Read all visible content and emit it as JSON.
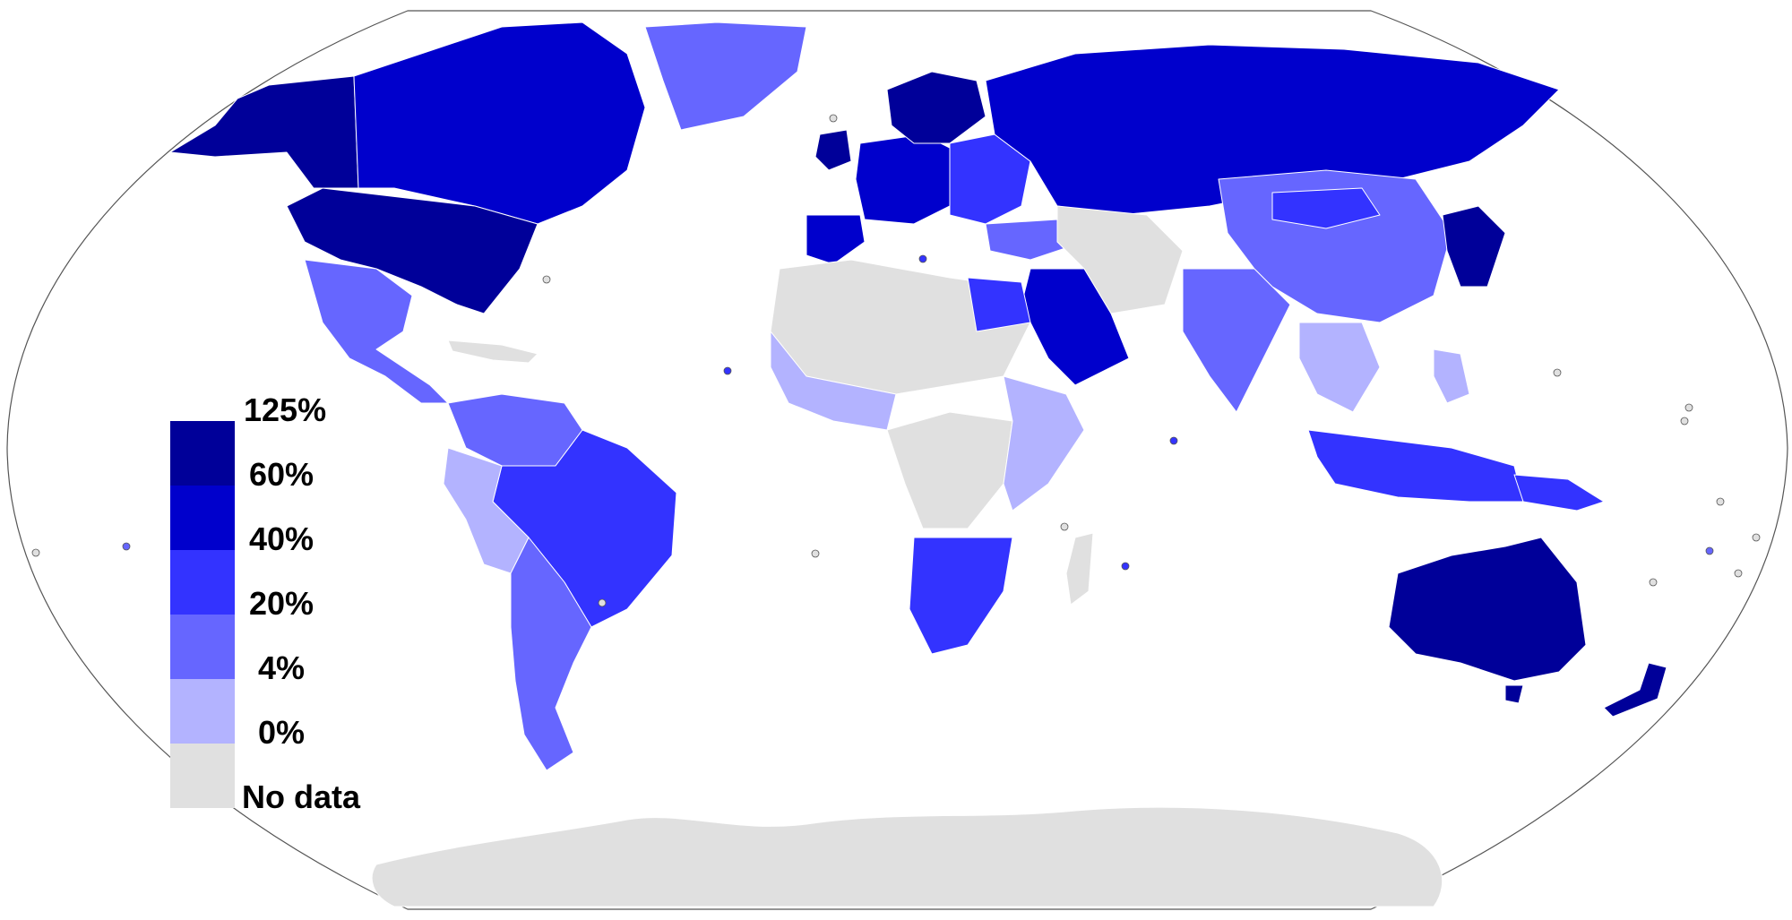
{
  "colors": {
    "background": "#ffffff",
    "ocean_outline": "#555555",
    "bin_125": "#000099",
    "bin_60": "#0000cc",
    "bin_40": "#3333ff",
    "bin_20": "#6666ff",
    "bin_4": "#b3b3ff",
    "bin_0": "#e0e0e0",
    "no_data": "#e0e0e0"
  },
  "legend": {
    "items": [
      {
        "label": "125%",
        "color_key": "bin_125"
      },
      {
        "label": "60%",
        "color_key": "bin_60"
      },
      {
        "label": "40%",
        "color_key": "bin_40"
      },
      {
        "label": "20%",
        "color_key": "bin_20"
      },
      {
        "label": "4%",
        "color_key": "bin_4"
      },
      {
        "label": "0%",
        "color_key": "bin_0"
      },
      {
        "label": "No data",
        "color_key": "no_data"
      }
    ]
  }
}
